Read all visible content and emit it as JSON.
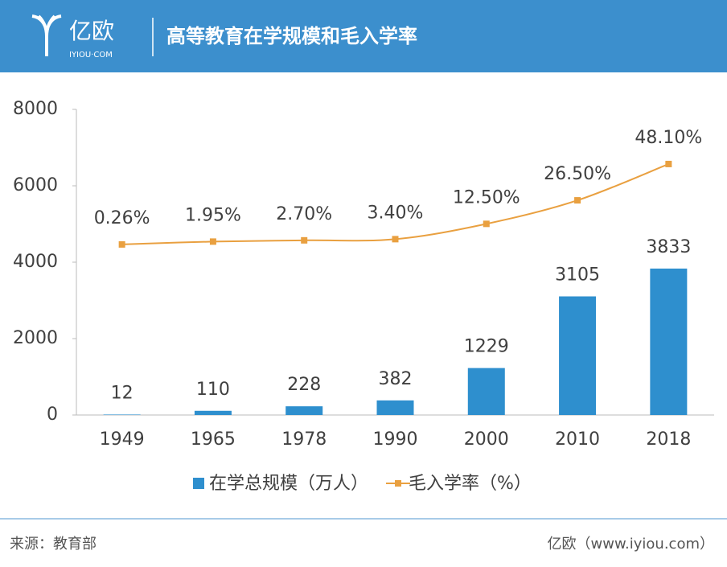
{
  "header": {
    "logo": "亿欧",
    "logo_sub": "IYIOU·COM"
  },
  "chart_data": {
    "type": "bar",
    "title": "高等教育在学规模和毛入学率",
    "categories": [
      "1949",
      "1965",
      "1978",
      "1990",
      "2000",
      "2010",
      "2018"
    ],
    "ylim": [
      0,
      8000
    ],
    "yticks": [
      0,
      2000,
      4000,
      6000,
      8000
    ],
    "y2lim": [
      -101.2,
      80.6
    ],
    "series": [
      {
        "name": "在学总规模（万人）",
        "type": "bar",
        "color": "#2e8fce",
        "values": [
          12,
          110,
          228,
          382,
          1229,
          3105,
          3833
        ]
      },
      {
        "name": "毛入学率（%）",
        "type": "line",
        "axis": "y2",
        "color": "#e9a040",
        "values": [
          0.26,
          1.95,
          2.7,
          3.4,
          12.5,
          26.5,
          48.1
        ],
        "value_labels": [
          "0.26%",
          "1.95%",
          "2.70%",
          "3.40%",
          "12.50%",
          "26.50%",
          "48.10%"
        ]
      }
    ]
  },
  "footer": {
    "source": "来源：教育部",
    "credit": "亿欧（www.iyiou.com）"
  }
}
